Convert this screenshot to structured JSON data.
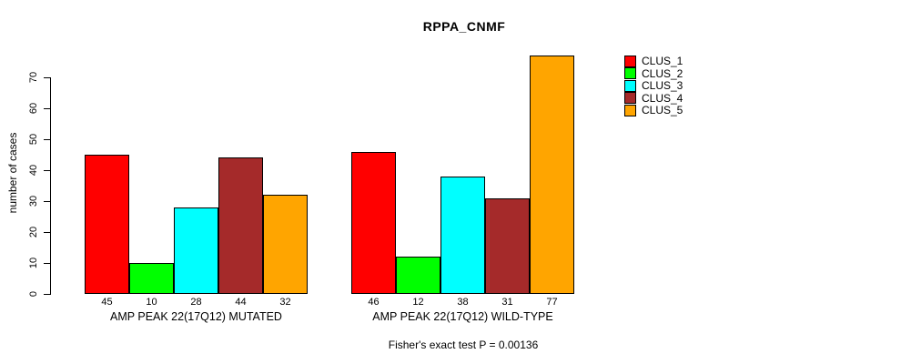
{
  "chart_data": {
    "type": "bar",
    "title": "RPPA_CNMF",
    "xlabel": "",
    "ylabel": "number of cases",
    "ylim": [
      0,
      70
    ],
    "yticks": [
      0,
      10,
      20,
      30,
      40,
      50,
      60,
      70
    ],
    "grid": false,
    "legend_position": "right",
    "series_names": [
      "CLUS_1",
      "CLUS_2",
      "CLUS_3",
      "CLUS_4",
      "CLUS_5"
    ],
    "series_colors": [
      "#FF0000",
      "#00FF00",
      "#00FFFF",
      "#A52A2A",
      "#FFA500"
    ],
    "groups": [
      {
        "label": "AMP PEAK 22(17Q12) MUTATED",
        "values": [
          45,
          10,
          28,
          44,
          32
        ]
      },
      {
        "label": "AMP PEAK 22(17Q12) WILD-TYPE",
        "values": [
          46,
          12,
          38,
          31,
          77
        ]
      }
    ],
    "bar_value_labels_shown": true,
    "annotation": "Fisher's exact test P = 0.00136"
  }
}
